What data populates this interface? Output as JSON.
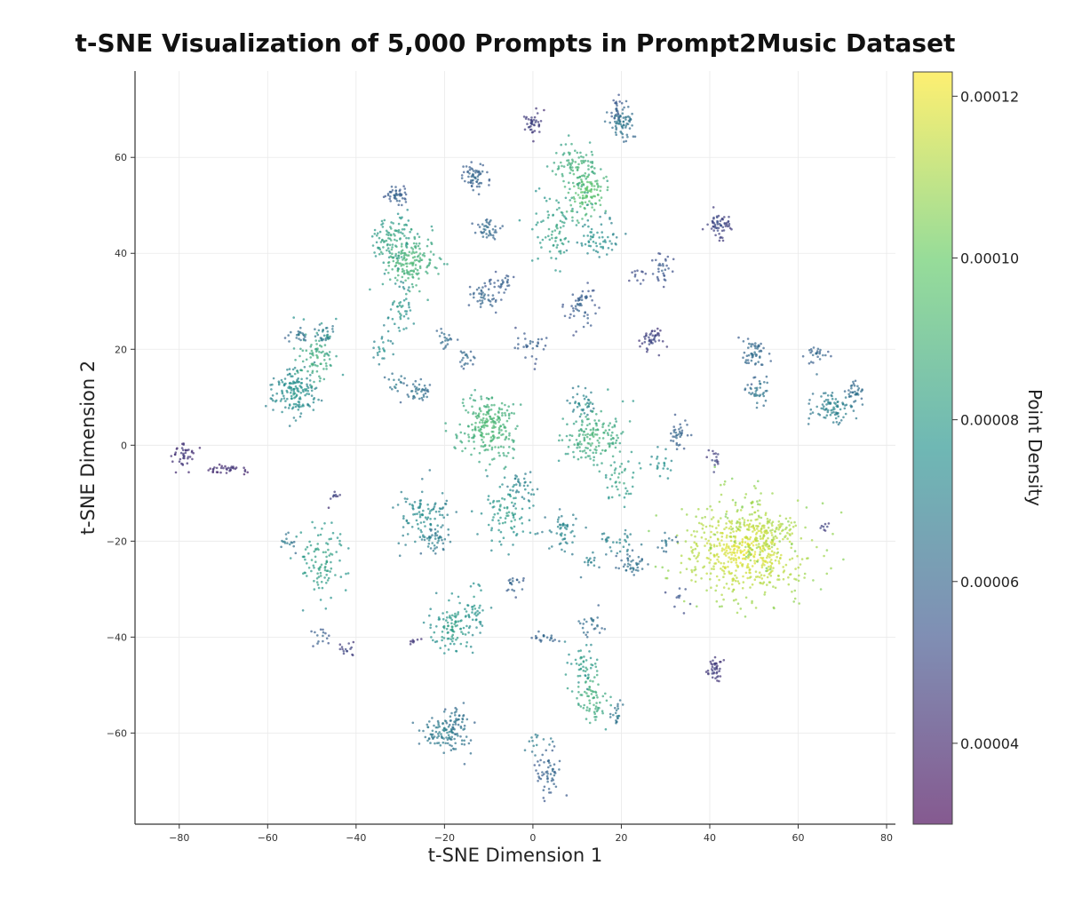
{
  "chart_data": {
    "type": "scatter",
    "title": "t-SNE Visualization of 5,000 Prompts in Prompt2Music Dataset",
    "xlabel": "t-SNE Dimension 1",
    "ylabel": "t-SNE Dimension 2",
    "xlim": [
      -90,
      82
    ],
    "ylim": [
      -79,
      78
    ],
    "xticks": [
      -80,
      -60,
      -40,
      -20,
      0,
      20,
      40,
      60,
      80
    ],
    "yticks": [
      -60,
      -40,
      -20,
      0,
      20,
      40,
      60
    ],
    "xtick_labels": [
      "−80",
      "−60",
      "−40",
      "−20",
      "0",
      "20",
      "40",
      "60",
      "80"
    ],
    "ytick_labels": [
      "−60",
      "−40",
      "−20",
      "0",
      "20",
      "40",
      "60"
    ],
    "grid": true,
    "colormap": "viridis",
    "point_alpha": 0.7,
    "point_count": 5000,
    "colorbar": {
      "label": "Point Density",
      "range": [
        3e-05,
        0.000123
      ],
      "ticks": [
        4e-05,
        6e-05,
        8e-05,
        0.0001,
        0.00012
      ],
      "tick_labels": [
        "0.00004",
        "0.00006",
        "0.00008",
        "0.00010",
        "0.00012"
      ],
      "colors": [
        "#440154",
        "#3b528b",
        "#21918c",
        "#5ec962",
        "#fde725"
      ]
    },
    "clusters": [
      {
        "x": 48,
        "y": -22,
        "sx": 7,
        "sy": 5,
        "n": 560,
        "density": 0.00012
      },
      {
        "x": 50,
        "y": -18,
        "sx": 4,
        "sy": 3,
        "n": 120,
        "density": 0.000115
      },
      {
        "x": -10,
        "y": 4,
        "sx": 3.5,
        "sy": 3.5,
        "n": 230,
        "density": 9.3e-05
      },
      {
        "x": 14,
        "y": 2,
        "sx": 3.5,
        "sy": 3,
        "n": 160,
        "density": 9e-05
      },
      {
        "x": -28,
        "y": 38,
        "sx": 3,
        "sy": 3,
        "n": 170,
        "density": 9.2e-05
      },
      {
        "x": -32,
        "y": 43,
        "sx": 2.5,
        "sy": 2.5,
        "n": 90,
        "density": 8.5e-05
      },
      {
        "x": -54,
        "y": 11,
        "sx": 2.5,
        "sy": 2.5,
        "n": 150,
        "density": 7.8e-05
      },
      {
        "x": -49,
        "y": 18,
        "sx": 2.5,
        "sy": 3,
        "n": 90,
        "density": 8.8e-05
      },
      {
        "x": 12,
        "y": 53,
        "sx": 2.5,
        "sy": 2.5,
        "n": 110,
        "density": 9.8e-05
      },
      {
        "x": 10,
        "y": 58,
        "sx": 3,
        "sy": 3,
        "n": 90,
        "density": 9e-05
      },
      {
        "x": 5,
        "y": 45,
        "sx": 2.5,
        "sy": 4,
        "n": 80,
        "density": 8.5e-05
      },
      {
        "x": 14,
        "y": 43,
        "sx": 2.5,
        "sy": 2,
        "n": 60,
        "density": 7.8e-05
      },
      {
        "x": 20,
        "y": 67,
        "sx": 1.5,
        "sy": 1.5,
        "n": 70,
        "density": 6.8e-05
      },
      {
        "x": 19,
        "y": 70,
        "sx": 1,
        "sy": 1,
        "n": 20,
        "density": 5.8e-05
      },
      {
        "x": 0,
        "y": 67,
        "sx": 1.2,
        "sy": 1.5,
        "n": 40,
        "density": 4.8e-05
      },
      {
        "x": -13,
        "y": 56,
        "sx": 1.5,
        "sy": 1.5,
        "n": 60,
        "density": 6.2e-05
      },
      {
        "x": -31,
        "y": 52,
        "sx": 1.3,
        "sy": 1.2,
        "n": 45,
        "density": 6e-05
      },
      {
        "x": -10,
        "y": 45,
        "sx": 1.3,
        "sy": 1.3,
        "n": 40,
        "density": 6.4e-05
      },
      {
        "x": -11,
        "y": 31,
        "sx": 1.5,
        "sy": 1.5,
        "n": 45,
        "density": 6.2e-05
      },
      {
        "x": -7,
        "y": 34,
        "sx": 1.2,
        "sy": 1,
        "n": 25,
        "density": 6e-05
      },
      {
        "x": 11,
        "y": 29,
        "sx": 1.5,
        "sy": 2,
        "n": 55,
        "density": 6e-05
      },
      {
        "x": -30,
        "y": 28,
        "sx": 1.5,
        "sy": 3,
        "n": 45,
        "density": 8e-05
      },
      {
        "x": -34,
        "y": 20,
        "sx": 1.2,
        "sy": 1.2,
        "n": 20,
        "density": 7.8e-05
      },
      {
        "x": -20,
        "y": 22,
        "sx": 1,
        "sy": 1,
        "n": 20,
        "density": 6.5e-05
      },
      {
        "x": -15,
        "y": 18,
        "sx": 1,
        "sy": 1,
        "n": 20,
        "density": 6.4e-05
      },
      {
        "x": -26,
        "y": 11,
        "sx": 1.5,
        "sy": 1.3,
        "n": 40,
        "density": 6.6e-05
      },
      {
        "x": -31,
        "y": 13,
        "sx": 1,
        "sy": 1,
        "n": 15,
        "density": 7e-05
      },
      {
        "x": 0,
        "y": 21,
        "sx": 2,
        "sy": 1.5,
        "n": 30,
        "density": 6e-05
      },
      {
        "x": 27,
        "y": 22,
        "sx": 1.3,
        "sy": 1.3,
        "n": 45,
        "density": 5e-05
      },
      {
        "x": 29,
        "y": 37,
        "sx": 1,
        "sy": 1.5,
        "n": 30,
        "density": 5.8e-05
      },
      {
        "x": 24,
        "y": 35,
        "sx": 1,
        "sy": 1,
        "n": 12,
        "density": 5.5e-05
      },
      {
        "x": 42,
        "y": 46,
        "sx": 1.3,
        "sy": 1.2,
        "n": 60,
        "density": 5.2e-05
      },
      {
        "x": 50,
        "y": 19,
        "sx": 1.5,
        "sy": 2,
        "n": 55,
        "density": 6.4e-05
      },
      {
        "x": 51,
        "y": 11,
        "sx": 1.2,
        "sy": 1.5,
        "n": 35,
        "density": 6.8e-05
      },
      {
        "x": 68,
        "y": 8,
        "sx": 2.5,
        "sy": 2,
        "n": 90,
        "density": 7.2e-05
      },
      {
        "x": 73,
        "y": 11,
        "sx": 1,
        "sy": 1,
        "n": 30,
        "density": 6.6e-05
      },
      {
        "x": 64,
        "y": 19,
        "sx": 1.5,
        "sy": 1,
        "n": 25,
        "density": 6.2e-05
      },
      {
        "x": 11,
        "y": 9,
        "sx": 1.5,
        "sy": 1.5,
        "n": 35,
        "density": 7.4e-05
      },
      {
        "x": 33,
        "y": 2,
        "sx": 1.2,
        "sy": 1.5,
        "n": 35,
        "density": 6.2e-05
      },
      {
        "x": 29,
        "y": -4,
        "sx": 1.5,
        "sy": 2,
        "n": 20,
        "density": 7.8e-05
      },
      {
        "x": 20,
        "y": -7,
        "sx": 2,
        "sy": 2,
        "n": 40,
        "density": 8.6e-05
      },
      {
        "x": 41,
        "y": -3,
        "sx": 0.8,
        "sy": 1.5,
        "n": 15,
        "density": 5e-05
      },
      {
        "x": -6,
        "y": -14,
        "sx": 2.5,
        "sy": 3,
        "n": 90,
        "density": 8.2e-05
      },
      {
        "x": -2,
        "y": -9,
        "sx": 1.5,
        "sy": 1.5,
        "n": 30,
        "density": 7.4e-05
      },
      {
        "x": -25,
        "y": -15,
        "sx": 3,
        "sy": 3,
        "n": 110,
        "density": 7.6e-05
      },
      {
        "x": -22,
        "y": -20,
        "sx": 1.5,
        "sy": 1.5,
        "n": 30,
        "density": 7e-05
      },
      {
        "x": -48,
        "y": -24,
        "sx": 3,
        "sy": 4,
        "n": 100,
        "density": 8.4e-05
      },
      {
        "x": -56,
        "y": -20,
        "sx": 1,
        "sy": 1,
        "n": 15,
        "density": 7e-05
      },
      {
        "x": -45,
        "y": -11,
        "sx": 0.6,
        "sy": 0.8,
        "n": 10,
        "density": 5e-05
      },
      {
        "x": 7,
        "y": -18,
        "sx": 2,
        "sy": 2,
        "n": 50,
        "density": 7.4e-05
      },
      {
        "x": 19,
        "y": -20,
        "sx": 2,
        "sy": 1.5,
        "n": 30,
        "density": 7.4e-05
      },
      {
        "x": 23,
        "y": -25,
        "sx": 1.5,
        "sy": 1.5,
        "n": 40,
        "density": 6.6e-05
      },
      {
        "x": 30,
        "y": -20,
        "sx": 1,
        "sy": 1,
        "n": 15,
        "density": 6.8e-05
      },
      {
        "x": 13,
        "y": -24,
        "sx": 1.2,
        "sy": 1.2,
        "n": 15,
        "density": 7.2e-05
      },
      {
        "x": -4,
        "y": -29,
        "sx": 1,
        "sy": 1,
        "n": 20,
        "density": 6.2e-05
      },
      {
        "x": -18,
        "y": -38,
        "sx": 2.5,
        "sy": 3,
        "n": 110,
        "density": 8.2e-05
      },
      {
        "x": -13,
        "y": -33,
        "sx": 1.5,
        "sy": 3,
        "n": 30,
        "density": 8e-05
      },
      {
        "x": 13,
        "y": -52,
        "sx": 2,
        "sy": 3,
        "n": 80,
        "density": 9e-05
      },
      {
        "x": 11,
        "y": -45,
        "sx": 1.5,
        "sy": 2,
        "n": 35,
        "density": 8.2e-05
      },
      {
        "x": 13,
        "y": -37,
        "sx": 1.5,
        "sy": 1.5,
        "n": 25,
        "density": 6.6e-05
      },
      {
        "x": 3,
        "y": -40,
        "sx": 2,
        "sy": 0.8,
        "n": 20,
        "density": 6.2e-05
      },
      {
        "x": 19,
        "y": -56,
        "sx": 1,
        "sy": 1.5,
        "n": 20,
        "density": 6.8e-05
      },
      {
        "x": -20,
        "y": -60,
        "sx": 3,
        "sy": 2,
        "n": 110,
        "density": 7e-05
      },
      {
        "x": -17,
        "y": -57,
        "sx": 1.5,
        "sy": 1.5,
        "n": 30,
        "density": 6.6e-05
      },
      {
        "x": 4,
        "y": -68,
        "sx": 1.5,
        "sy": 2.5,
        "n": 55,
        "density": 6.2e-05
      },
      {
        "x": 1,
        "y": -62,
        "sx": 1.5,
        "sy": 1,
        "n": 15,
        "density": 7.2e-05
      },
      {
        "x": 41,
        "y": -47,
        "sx": 0.8,
        "sy": 1.2,
        "n": 40,
        "density": 4.8e-05
      },
      {
        "x": -79,
        "y": -2,
        "sx": 1.3,
        "sy": 1.2,
        "n": 40,
        "density": 4.6e-05
      },
      {
        "x": -69,
        "y": -5,
        "sx": 2.5,
        "sy": 0.5,
        "n": 35,
        "density": 4.4e-05
      },
      {
        "x": -48,
        "y": -40,
        "sx": 1,
        "sy": 1,
        "n": 15,
        "density": 6e-05
      },
      {
        "x": -42,
        "y": -43,
        "sx": 1,
        "sy": 1,
        "n": 15,
        "density": 5e-05
      },
      {
        "x": -27,
        "y": -41,
        "sx": 0.6,
        "sy": 0.6,
        "n": 8,
        "density": 4.6e-05
      },
      {
        "x": 66,
        "y": -17,
        "sx": 0.8,
        "sy": 0.5,
        "n": 8,
        "density": 5e-05
      },
      {
        "x": 33,
        "y": -32,
        "sx": 1,
        "sy": 1.5,
        "n": 10,
        "density": 5.6e-05
      },
      {
        "x": -53,
        "y": 23,
        "sx": 1,
        "sy": 1,
        "n": 20,
        "density": 6.6e-05
      },
      {
        "x": -47,
        "y": 23,
        "sx": 1.2,
        "sy": 1,
        "n": 25,
        "density": 7.2e-05
      }
    ]
  }
}
